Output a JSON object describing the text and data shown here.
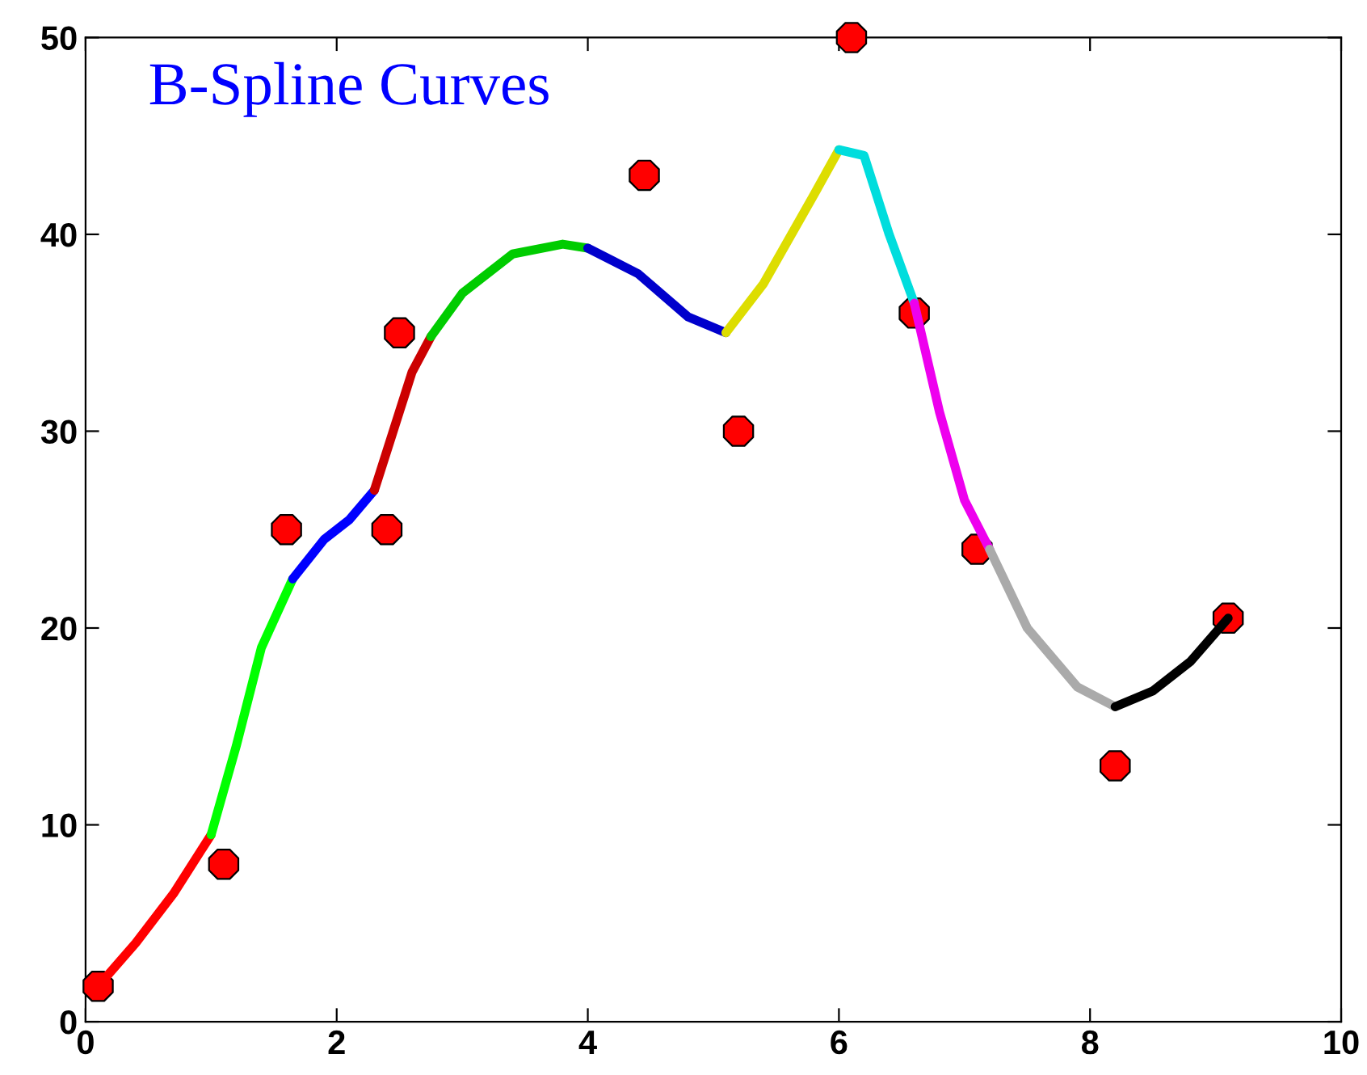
{
  "chart_data": {
    "type": "line",
    "title": "B-Spline Curves",
    "xlim": [
      0,
      10
    ],
    "ylim": [
      0,
      50
    ],
    "xticks": [
      0,
      2,
      4,
      6,
      8,
      10
    ],
    "yticks": [
      0,
      10,
      20,
      30,
      40,
      50
    ],
    "grid": false,
    "legend": false,
    "line_style": "solid",
    "series": [
      {
        "color": "#ff0000",
        "x": [
          0.1,
          0.4,
          0.7,
          1.0
        ],
        "values": [
          1.8,
          4,
          6.5,
          9.5
        ]
      },
      {
        "color": "#00ff00",
        "x": [
          1.0,
          1.2,
          1.4,
          1.65
        ],
        "values": [
          9.5,
          14,
          19,
          22.5
        ]
      },
      {
        "color": "#0000ff",
        "x": [
          1.65,
          1.9,
          2.1,
          2.3
        ],
        "values": [
          22.5,
          24.5,
          25.5,
          27
        ]
      },
      {
        "color": "#cc0000",
        "x": [
          2.3,
          2.45,
          2.6,
          2.75
        ],
        "values": [
          27,
          30,
          33,
          34.8
        ]
      },
      {
        "color": "#00cc00",
        "x": [
          2.75,
          3.0,
          3.4,
          3.8,
          4.0
        ],
        "values": [
          34.8,
          37,
          39,
          39.5,
          39.3
        ]
      },
      {
        "color": "#0000cc",
        "x": [
          4.0,
          4.4,
          4.8,
          5.1
        ],
        "values": [
          39.3,
          38,
          35.8,
          35
        ]
      },
      {
        "color": "#dddd00",
        "x": [
          5.1,
          5.4,
          5.8,
          6.0
        ],
        "values": [
          35,
          37.5,
          42,
          44.3
        ]
      },
      {
        "color": "#00dddd",
        "x": [
          6.0,
          6.2,
          6.4,
          6.6
        ],
        "values": [
          44.3,
          44,
          40,
          36.5
        ]
      },
      {
        "color": "#ee00ee",
        "x": [
          6.6,
          6.8,
          7.0,
          7.2
        ],
        "values": [
          36.5,
          31,
          26.5,
          24
        ]
      },
      {
        "color": "#aaaaaa",
        "x": [
          7.2,
          7.5,
          7.9,
          8.2
        ],
        "values": [
          24,
          20,
          17,
          16
        ]
      },
      {
        "color": "#000000",
        "x": [
          8.2,
          8.5,
          8.8,
          9.1
        ],
        "values": [
          16,
          16.8,
          18.3,
          20.5
        ]
      },
      {
        "type": "scatter",
        "color": "#ff0000",
        "marker": "circle",
        "x": [
          0.1,
          1.1,
          1.6,
          2.4,
          2.5,
          4.45,
          5.2,
          6.1,
          6.6,
          7.1,
          8.2,
          9.1
        ],
        "values": [
          1.8,
          8,
          25,
          25,
          35,
          43,
          30,
          50,
          36,
          24,
          13,
          20.5
        ]
      }
    ]
  }
}
